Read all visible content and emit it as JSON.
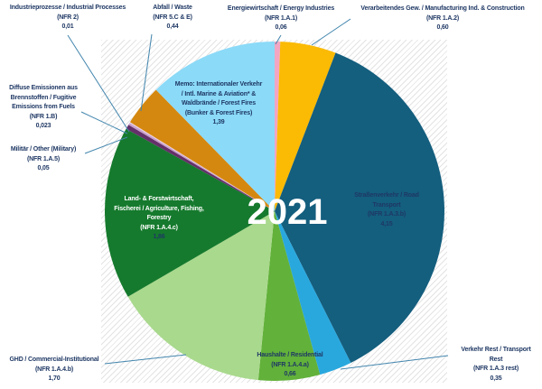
{
  "chart_data": {
    "type": "pie",
    "center_label": "2021",
    "direction": "clockwise",
    "start_angle_deg": 0,
    "total": 11.293,
    "legend_position": "none",
    "plot_area_pattern": "light-diagonal-hatch",
    "label_text_color": "#1F3864",
    "leader_line_color": "#4285AD",
    "segments": [
      {
        "id": "energy",
        "name": "Energiewirtschaft / Energy Industries",
        "nfr": "(NFR 1.A.1)",
        "value": 0.06,
        "value_label": "0,06",
        "color": "#F3A6C3",
        "label_placement": "outside",
        "label_lines": [
          "Energiewirtschaft / Energy Industries",
          "(NFR 1.A.1)",
          "0,06"
        ]
      },
      {
        "id": "manufacturing",
        "name": "Verarbeitendes Gew. / Manufacturing Ind. & Construction",
        "nfr": "(NFR 1.A.2)",
        "value": 0.6,
        "value_label": "0,60",
        "color": "#FBBA04",
        "label_placement": "outside",
        "label_lines": [
          "Verarbeitendes Gew. / Manufacturing  Ind. & Construction",
          "(NFR 1.A.2)",
          "0,60"
        ]
      },
      {
        "id": "road",
        "name": "Straßenverkehr / Road Transport",
        "nfr": "(NFR 1.A.3.b)",
        "value": 4.15,
        "value_label": "4,15",
        "color": "#145E7E",
        "label_placement": "inside",
        "label_lines": [
          "Straßenverkehr  / Road",
          "Transport",
          "(NFR 1.A.3.b)",
          "4,15"
        ]
      },
      {
        "id": "transport_rest",
        "name": "Verkehr Rest / Transport Rest",
        "nfr": "(NFR 1.A.3 rest)",
        "value": 0.35,
        "value_label": "0,35",
        "color": "#29A8DE",
        "label_placement": "outside",
        "label_lines": [
          "Verkehr Rest / Transport",
          "Rest",
          "(NFR 1.A.3 rest)",
          "0,35"
        ]
      },
      {
        "id": "residential",
        "name": "Haushalte / Residential",
        "nfr": "(NFR 1.A.4.a)",
        "value": 0.66,
        "value_label": "0,66",
        "color": "#62B13A",
        "label_placement": "inside",
        "label_lines": [
          "Haushalte / Residential",
          "(NFR 1.A.4.a)",
          "0,66"
        ]
      },
      {
        "id": "ghd",
        "name": "GHD / Commercial-Institutional",
        "nfr": "(NFR 1.A.4.b)",
        "value": 1.7,
        "value_label": "1,70",
        "color": "#A9D98D",
        "label_placement": "outside",
        "label_lines": [
          "GHD / Commercial-Institutional",
          "(NFR 1.A.4.b)",
          "1,70"
        ]
      },
      {
        "id": "agriculture",
        "name": "Land- & Forstwirtschaft, Fischerei / Agriculture, Fishing, Forestry",
        "nfr": "(NFR 1.A.4.c)",
        "value": 1.86,
        "value_label": "1,86",
        "color": "#157A2D",
        "label_placement": "inside-white",
        "label_lines": [
          "Land-  & Forstwirtschaft,",
          "Fischerei / Agriculture,  Fishing,",
          "Forestry",
          "(NFR 1.A.4.c)",
          "1,86"
        ]
      },
      {
        "id": "military",
        "name": "Militär / Other (Military)",
        "nfr": "(NFR 1.A.5)",
        "value": 0.05,
        "value_label": "0,05",
        "color": "#643069",
        "label_placement": "outside",
        "label_lines": [
          "Militär  / Other (Military)",
          "(NFR 1.A.5)",
          "0,05"
        ]
      },
      {
        "id": "fugitive",
        "name": "Diffuse Emissionen aus Brennstoffen / Fugitive Emissions from Fuels",
        "nfr": "(NFR 1.B)",
        "value": 0.023,
        "value_label": "0,023",
        "color": "#C79FCC",
        "label_placement": "outside",
        "label_lines": [
          "Diffuse Emissionen aus",
          "Brennstoffen / Fugitive",
          "Emissions from Fuels",
          "(NFR 1.B)",
          "0,023"
        ]
      },
      {
        "id": "industrial",
        "name": "Industrieprozesse / Industrial Processes",
        "nfr": "(NFR 2)",
        "value": 0.01,
        "value_label": "0,01",
        "color": "#EBD2E9",
        "label_placement": "outside",
        "label_lines": [
          "Industrieprozesse / Industrial  Processes",
          "(NFR 2)",
          "0,01"
        ]
      },
      {
        "id": "waste",
        "name": "Abfall / Waste",
        "nfr": "(NFR 5.C & E)",
        "value": 0.44,
        "value_label": "0,44",
        "color": "#D5880F",
        "label_placement": "outside",
        "label_lines": [
          "Abfall / Waste",
          "(NFR 5.C & E)",
          "0,44"
        ]
      },
      {
        "id": "memo",
        "name": "Memo: Internationaler Verkehr / Intl. Marine & Aviation* & Waldbrände / Forest Fires (Bunker & Forest Fires)",
        "nfr": "(Bunker & Forest Fires)",
        "value": 1.39,
        "value_label": "1,39",
        "color": "#8BDAF8",
        "label_placement": "inside",
        "label_lines": [
          "Memo: Internationaler  Verkehr",
          "/ Intl. Marine & Aviation*  &",
          "Waldbrände  / Forest Fires",
          "(Bunker & Forest Fires)",
          "1,39"
        ]
      }
    ]
  }
}
